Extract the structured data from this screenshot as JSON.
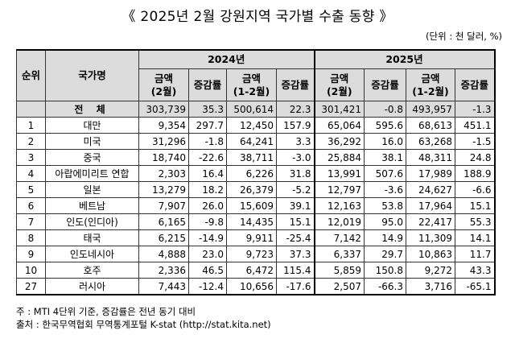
{
  "title": "《 2025년 2월 강원지역 국가별 수출 동향 》",
  "unit": "(단위 : 천 달러, %)",
  "headers": {
    "rank": "순위",
    "country": "국가명",
    "year1": "2024년",
    "year2": "2025년",
    "amount_feb_l1": "금액",
    "amount_feb_l2": "(2월)",
    "change": "증감률",
    "amount_cum_l1": "금액",
    "amount_cum_l2": "(1-2월)"
  },
  "total": {
    "rank": "",
    "name": "전 체",
    "a1": "303,739",
    "b1": "35.3",
    "c1": "500,614",
    "d1": "22.3",
    "a2": "301,421",
    "b2": "-0.8",
    "c2": "493,957",
    "d2": "-1.3"
  },
  "rows": [
    {
      "rank": "1",
      "name": "대만",
      "a1": "9,354",
      "b1": "297.7",
      "c1": "12,450",
      "d1": "157.9",
      "a2": "65,064",
      "b2": "595.6",
      "c2": "68,613",
      "d2": "451.1"
    },
    {
      "rank": "2",
      "name": "미국",
      "a1": "31,296",
      "b1": "-1.8",
      "c1": "64,241",
      "d1": "3.3",
      "a2": "36,292",
      "b2": "16.0",
      "c2": "63,268",
      "d2": "-1.5"
    },
    {
      "rank": "3",
      "name": "중국",
      "a1": "18,740",
      "b1": "-22.6",
      "c1": "38,711",
      "d1": "-3.0",
      "a2": "25,884",
      "b2": "38.1",
      "c2": "48,311",
      "d2": "24.8"
    },
    {
      "rank": "4",
      "name": "아랍에미리트 연합",
      "a1": "2,303",
      "b1": "16.4",
      "c1": "6,226",
      "d1": "31.8",
      "a2": "13,991",
      "b2": "507.6",
      "c2": "17,989",
      "d2": "188.9"
    },
    {
      "rank": "5",
      "name": "일본",
      "a1": "13,279",
      "b1": "18.2",
      "c1": "26,379",
      "d1": "-5.2",
      "a2": "12,797",
      "b2": "-3.6",
      "c2": "24,627",
      "d2": "-6.6"
    },
    {
      "rank": "6",
      "name": "베트남",
      "a1": "7,907",
      "b1": "26.0",
      "c1": "15,609",
      "d1": "39.1",
      "a2": "12,163",
      "b2": "53.8",
      "c2": "17,964",
      "d2": "15.1"
    },
    {
      "rank": "7",
      "name": "인도(인디아)",
      "a1": "6,165",
      "b1": "-9.8",
      "c1": "14,435",
      "d1": "15.1",
      "a2": "12,019",
      "b2": "95.0",
      "c2": "22,417",
      "d2": "55.3"
    },
    {
      "rank": "8",
      "name": "태국",
      "a1": "6,215",
      "b1": "-14.9",
      "c1": "9,911",
      "d1": "-25.4",
      "a2": "7,142",
      "b2": "14.9",
      "c2": "11,309",
      "d2": "14.1"
    },
    {
      "rank": "9",
      "name": "인도네시아",
      "a1": "4,888",
      "b1": "23.0",
      "c1": "9,723",
      "d1": "37.3",
      "a2": "6,337",
      "b2": "29.7",
      "c2": "10,863",
      "d2": "11.7"
    },
    {
      "rank": "10",
      "name": "호주",
      "a1": "2,336",
      "b1": "46.5",
      "c1": "6,472",
      "d1": "115.4",
      "a2": "5,859",
      "b2": "150.8",
      "c2": "9,272",
      "d2": "43.3"
    },
    {
      "rank": "27",
      "name": "러시아",
      "a1": "7,443",
      "b1": "-12.4",
      "c1": "10,656",
      "d1": "-17.6",
      "a2": "2,507",
      "b2": "-66.3",
      "c2": "3,716",
      "d2": "-65.1"
    }
  ],
  "notes": {
    "note1": "주 : MTI 4단위 기준, 증감률은 전년 동기 대비",
    "note2": "출처 : 한국무역협회 무역통계포털 K-stat (http://stat.kita.net)"
  }
}
